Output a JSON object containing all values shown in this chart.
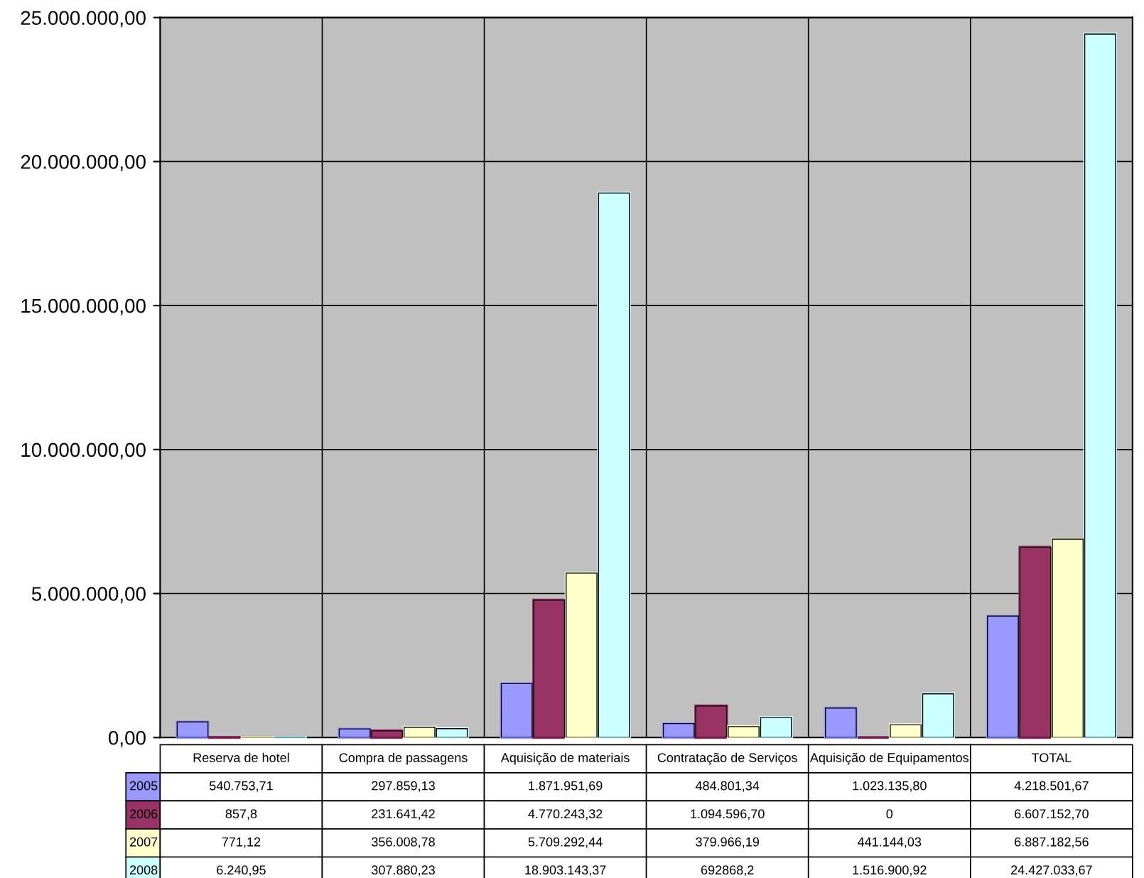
{
  "chart_data": {
    "type": "bar",
    "categories": [
      "Reserva de hotel",
      "Compra de passagens",
      "Aquisição de materiais",
      "Contratação de Serviços",
      "Aquisição de Equipamentos",
      "TOTAL"
    ],
    "series": [
      {
        "name": "2005",
        "color": "#9999ff",
        "values": [
          540753.71,
          297859.13,
          1871951.69,
          484801.34,
          1023135.8,
          4218501.67
        ],
        "value_labels": [
          "540.753,71",
          "297.859,13",
          "1.871.951,69",
          "484.801,34",
          "1.023.135,80",
          "4.218.501,67"
        ]
      },
      {
        "name": "2006",
        "color": "#993366",
        "values": [
          857.8,
          231641.42,
          4770243.32,
          1094596.7,
          0,
          6607152.7
        ],
        "value_labels": [
          "857,8",
          "231.641,42",
          "4.770.243,32",
          "1.094.596,70",
          "0",
          "6.607.152,70"
        ]
      },
      {
        "name": "2007",
        "color": "#ffffcc",
        "values": [
          771.12,
          356008.78,
          5709292.44,
          379966.19,
          441144.03,
          6887182.56
        ],
        "value_labels": [
          "771,12",
          "356.008,78",
          "5.709.292,44",
          "379.966,19",
          "441.144,03",
          "6.887.182,56"
        ]
      },
      {
        "name": "2008",
        "color": "#ccffff",
        "values": [
          6240.95,
          307880.23,
          18903143.37,
          692868.2,
          1516900.92,
          24427033.67
        ],
        "value_labels": [
          "6.240,95",
          "307.880,23",
          "18.903.143,37",
          "692868,2",
          "1.516.900,92",
          "24.427.033,67"
        ]
      }
    ],
    "ylim": [
      0,
      25000000
    ],
    "yticks": [
      {
        "value": 0,
        "label": "0,00"
      },
      {
        "value": 5000000,
        "label": "5.000.000,00"
      },
      {
        "value": 10000000,
        "label": "10.000.000,00"
      },
      {
        "value": 15000000,
        "label": "15.000.000,00"
      },
      {
        "value": 20000000,
        "label": "20.000.000,00"
      },
      {
        "value": 25000000,
        "label": "25.000.000,00"
      }
    ],
    "grid": "y",
    "legend": "bottom"
  }
}
